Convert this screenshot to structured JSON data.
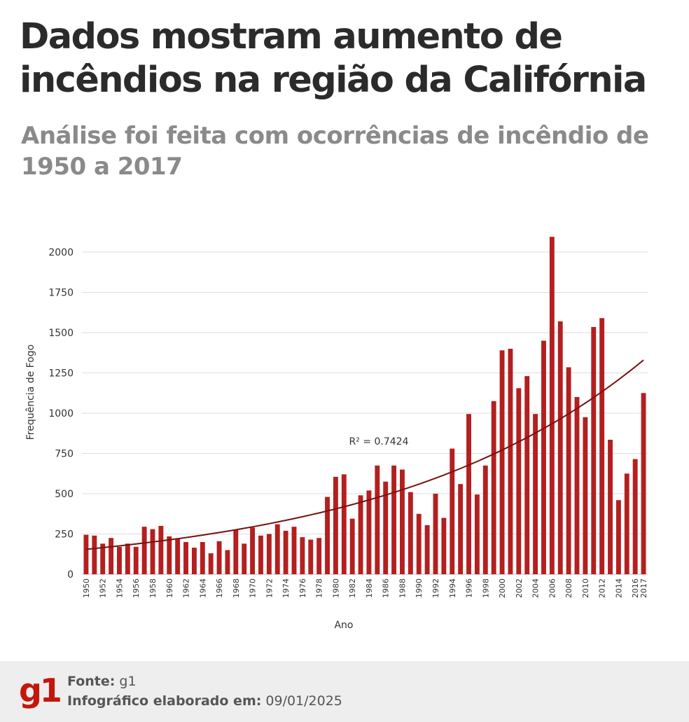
{
  "header": {
    "title": "Dados mostram aumento de incêndios na região da Califórnia",
    "subtitle": "Análise foi feita com ocorrências de incêndio de 1950 a 2017"
  },
  "chart_data": {
    "type": "bar",
    "title": "Dados mostram aumento de incêndios na região da Califórnia",
    "xlabel": "Ano",
    "ylabel": "Frequência de Fogo",
    "ylim": [
      0,
      2100
    ],
    "yticks": [
      0,
      250,
      500,
      750,
      1000,
      1250,
      1500,
      1750,
      2000
    ],
    "grid": true,
    "bar_color": "#b41f1f",
    "trend_color": "#7a1010",
    "annotation": "R² = 0.7424",
    "trendline": {
      "type": "exponential",
      "start_value": 155,
      "end_value": 1330
    },
    "categories": [
      1950,
      1951,
      1952,
      1953,
      1954,
      1955,
      1956,
      1957,
      1958,
      1959,
      1960,
      1961,
      1962,
      1963,
      1964,
      1965,
      1966,
      1967,
      1968,
      1969,
      1970,
      1971,
      1972,
      1973,
      1974,
      1975,
      1976,
      1977,
      1978,
      1979,
      1980,
      1981,
      1982,
      1983,
      1984,
      1985,
      1986,
      1987,
      1988,
      1989,
      1990,
      1991,
      1992,
      1993,
      1994,
      1995,
      1996,
      1997,
      1998,
      1999,
      2000,
      2001,
      2002,
      2003,
      2004,
      2005,
      2006,
      2007,
      2008,
      2009,
      2010,
      2011,
      2012,
      2013,
      2014,
      2015,
      2016,
      2017
    ],
    "tick_labels": [
      "1950",
      "1952",
      "1954",
      "1956",
      "1958",
      "1960",
      "1962",
      "1964",
      "1966",
      "1968",
      "1970",
      "1972",
      "1974",
      "1976",
      "1978",
      "1980",
      "1982",
      "1984",
      "1986",
      "1988",
      "1990",
      "1992",
      "1994",
      "1996",
      "1998",
      "2000",
      "2002",
      "2004",
      "2006",
      "2008",
      "2010",
      "2012",
      "2014",
      "2016",
      "2017"
    ],
    "values": [
      245,
      240,
      190,
      225,
      170,
      190,
      170,
      295,
      280,
      300,
      235,
      220,
      200,
      165,
      200,
      130,
      205,
      150,
      275,
      190,
      290,
      240,
      250,
      310,
      270,
      295,
      230,
      215,
      225,
      480,
      605,
      620,
      345,
      490,
      520,
      675,
      575,
      675,
      650,
      510,
      375,
      305,
      500,
      350,
      780,
      560,
      995,
      495,
      675,
      1075,
      1390,
      1400,
      1155,
      1230,
      995,
      1450,
      2095,
      1570,
      1285,
      1100,
      975,
      1535,
      1590,
      835,
      460,
      625,
      715,
      1125
    ]
  },
  "footer": {
    "logo": "g1",
    "source_label": "Fonte:",
    "source_value": "g1",
    "made_label": "Infográfico elaborado em:",
    "made_value": "09/01/2025"
  }
}
